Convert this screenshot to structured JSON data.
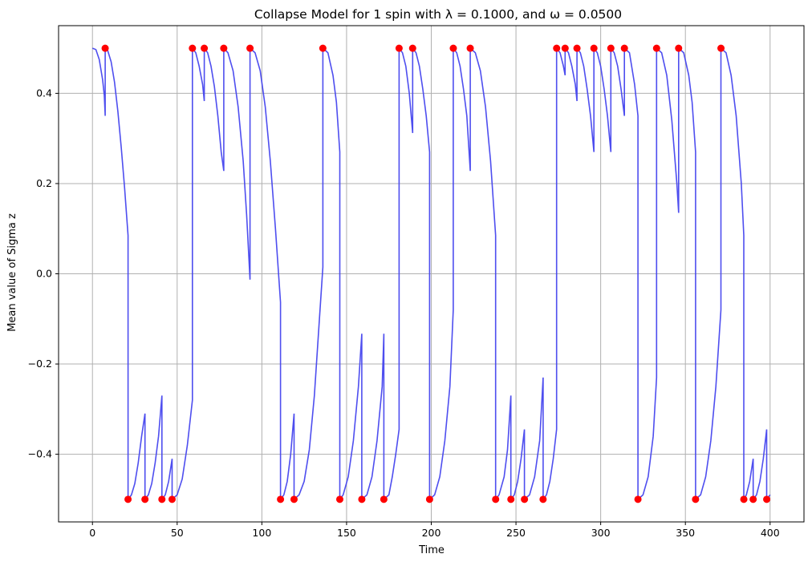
{
  "chart_data": {
    "type": "line",
    "title": "Collapse Model for 1 spin with λ = 0.1000, and ω = 0.0500",
    "xlabel": "Time",
    "ylabel": "Mean value of Sigma z",
    "xlim": [
      -20,
      420
    ],
    "ylim": [
      -0.55,
      0.55
    ],
    "x_ticks": [
      0,
      50,
      100,
      150,
      200,
      250,
      300,
      350,
      400
    ],
    "x_tick_labels": [
      "0",
      "50",
      "100",
      "150",
      "200",
      "250",
      "300",
      "350",
      "400"
    ],
    "y_ticks": [
      -0.4,
      -0.2,
      0.0,
      0.2,
      0.4
    ],
    "y_tick_labels": [
      "−0.4",
      "−0.2",
      "0.0",
      "0.2",
      "0.4"
    ],
    "grid": true,
    "line_color": "#4444ee",
    "marker_color": "#ff0000",
    "series": [
      {
        "values_description": "expectation",
        "points": [
          [
            0,
            0.5
          ],
          [
            2,
            0.497
          ],
          [
            4,
            0.475
          ],
          [
            6,
            0.43
          ],
          [
            7,
            0.395
          ],
          [
            7.5,
            0.35
          ],
          [
            7.5,
            0.5
          ],
          [
            9,
            0.495
          ],
          [
            11,
            0.47
          ],
          [
            13,
            0.425
          ],
          [
            15,
            0.36
          ],
          [
            17,
            0.28
          ],
          [
            19,
            0.19
          ],
          [
            21,
            0.085
          ],
          [
            21,
            -0.5
          ],
          [
            23,
            -0.49
          ],
          [
            25,
            -0.465
          ],
          [
            27,
            -0.42
          ],
          [
            29,
            -0.36
          ],
          [
            31,
            -0.31
          ],
          [
            31,
            -0.5
          ],
          [
            33,
            -0.49
          ],
          [
            35,
            -0.465
          ],
          [
            37,
            -0.42
          ],
          [
            39,
            -0.36
          ],
          [
            41,
            -0.27
          ],
          [
            41,
            -0.5
          ],
          [
            43,
            -0.49
          ],
          [
            45,
            -0.46
          ],
          [
            47,
            -0.41
          ],
          [
            47,
            -0.5
          ],
          [
            50,
            -0.49
          ],
          [
            53,
            -0.455
          ],
          [
            56,
            -0.38
          ],
          [
            59,
            -0.28
          ],
          [
            59,
            -0.18
          ],
          [
            59,
            0.5
          ],
          [
            61,
            0.49
          ],
          [
            63,
            0.46
          ],
          [
            65,
            0.42
          ],
          [
            66,
            0.383
          ],
          [
            66,
            0.5
          ],
          [
            68,
            0.49
          ],
          [
            70,
            0.46
          ],
          [
            72,
            0.415
          ],
          [
            74,
            0.35
          ],
          [
            76,
            0.27
          ],
          [
            77.5,
            0.228
          ],
          [
            77.5,
            0.5
          ],
          [
            80,
            0.49
          ],
          [
            83,
            0.45
          ],
          [
            86,
            0.37
          ],
          [
            89,
            0.25
          ],
          [
            91,
            0.13
          ],
          [
            93,
            -0.013
          ],
          [
            93,
            0.5
          ],
          [
            96,
            0.49
          ],
          [
            99,
            0.45
          ],
          [
            102,
            0.37
          ],
          [
            105,
            0.25
          ],
          [
            108,
            0.1
          ],
          [
            111,
            -0.063
          ],
          [
            111,
            -0.5
          ],
          [
            113,
            -0.49
          ],
          [
            115,
            -0.46
          ],
          [
            117,
            -0.4
          ],
          [
            119,
            -0.31
          ],
          [
            119,
            -0.5
          ],
          [
            122,
            -0.49
          ],
          [
            125,
            -0.46
          ],
          [
            128,
            -0.39
          ],
          [
            131,
            -0.27
          ],
          [
            134,
            -0.1
          ],
          [
            136,
            0.015
          ],
          [
            136,
            0.5
          ],
          [
            139,
            0.49
          ],
          [
            142,
            0.44
          ],
          [
            144,
            0.38
          ],
          [
            146,
            0.27
          ],
          [
            146,
            -0.5
          ],
          [
            148,
            -0.49
          ],
          [
            151,
            -0.45
          ],
          [
            154,
            -0.37
          ],
          [
            157,
            -0.25
          ],
          [
            159,
            -0.133
          ],
          [
            159,
            -0.5
          ],
          [
            162,
            -0.49
          ],
          [
            165,
            -0.45
          ],
          [
            168,
            -0.37
          ],
          [
            171,
            -0.25
          ],
          [
            172,
            -0.133
          ],
          [
            172,
            -0.5
          ],
          [
            175,
            -0.49
          ],
          [
            177,
            -0.45
          ],
          [
            179,
            -0.4
          ],
          [
            181,
            -0.345
          ],
          [
            181,
            0.5
          ],
          [
            183,
            0.49
          ],
          [
            185,
            0.46
          ],
          [
            187,
            0.4
          ],
          [
            189,
            0.312
          ],
          [
            189,
            0.5
          ],
          [
            191,
            0.49
          ],
          [
            193,
            0.46
          ],
          [
            195,
            0.41
          ],
          [
            197,
            0.35
          ],
          [
            199,
            0.27
          ],
          [
            199,
            -0.5
          ],
          [
            202,
            -0.49
          ],
          [
            205,
            -0.45
          ],
          [
            208,
            -0.37
          ],
          [
            211,
            -0.25
          ],
          [
            213,
            -0.08
          ],
          [
            213,
            0.5
          ],
          [
            215,
            0.49
          ],
          [
            217,
            0.46
          ],
          [
            219,
            0.41
          ],
          [
            221,
            0.35
          ],
          [
            223,
            0.228
          ],
          [
            223,
            0.5
          ],
          [
            226,
            0.49
          ],
          [
            229,
            0.45
          ],
          [
            232,
            0.37
          ],
          [
            235,
            0.25
          ],
          [
            238,
            0.085
          ],
          [
            238,
            -0.5
          ],
          [
            240,
            -0.49
          ],
          [
            243,
            -0.45
          ],
          [
            245,
            -0.39
          ],
          [
            247,
            -0.27
          ],
          [
            247,
            -0.5
          ],
          [
            249,
            -0.49
          ],
          [
            251,
            -0.46
          ],
          [
            253,
            -0.41
          ],
          [
            255,
            -0.345
          ],
          [
            255,
            -0.5
          ],
          [
            258,
            -0.49
          ],
          [
            261,
            -0.45
          ],
          [
            264,
            -0.37
          ],
          [
            266,
            -0.23
          ],
          [
            266,
            -0.5
          ],
          [
            268,
            -0.49
          ],
          [
            270,
            -0.46
          ],
          [
            272,
            -0.41
          ],
          [
            274,
            -0.345
          ],
          [
            274,
            0.5
          ],
          [
            276,
            0.49
          ],
          [
            278,
            0.46
          ],
          [
            279,
            0.44
          ],
          [
            279,
            0.5
          ],
          [
            281,
            0.49
          ],
          [
            283,
            0.46
          ],
          [
            285,
            0.42
          ],
          [
            286,
            0.383
          ],
          [
            286,
            0.5
          ],
          [
            288,
            0.49
          ],
          [
            290,
            0.46
          ],
          [
            292,
            0.41
          ],
          [
            294,
            0.35
          ],
          [
            296,
            0.27
          ],
          [
            296,
            0.5
          ],
          [
            298,
            0.49
          ],
          [
            300,
            0.46
          ],
          [
            302,
            0.41
          ],
          [
            304,
            0.35
          ],
          [
            306,
            0.27
          ],
          [
            306,
            0.5
          ],
          [
            308,
            0.49
          ],
          [
            310,
            0.46
          ],
          [
            312,
            0.41
          ],
          [
            314,
            0.35
          ],
          [
            314,
            0.5
          ],
          [
            317,
            0.49
          ],
          [
            320,
            0.42
          ],
          [
            322,
            0.35
          ],
          [
            322,
            -0.5
          ],
          [
            325,
            -0.49
          ],
          [
            328,
            -0.45
          ],
          [
            331,
            -0.36
          ],
          [
            333,
            -0.23
          ],
          [
            333,
            0.5
          ],
          [
            336,
            0.49
          ],
          [
            339,
            0.44
          ],
          [
            342,
            0.34
          ],
          [
            345,
            0.2
          ],
          [
            346,
            0.135
          ],
          [
            346,
            0.5
          ],
          [
            349,
            0.49
          ],
          [
            352,
            0.44
          ],
          [
            354,
            0.38
          ],
          [
            356,
            0.27
          ],
          [
            356,
            -0.5
          ],
          [
            359,
            -0.49
          ],
          [
            362,
            -0.45
          ],
          [
            365,
            -0.37
          ],
          [
            368,
            -0.25
          ],
          [
            371,
            -0.08
          ],
          [
            371,
            0.5
          ],
          [
            374,
            0.49
          ],
          [
            377,
            0.44
          ],
          [
            380,
            0.35
          ],
          [
            383,
            0.2
          ],
          [
            384.5,
            0.085
          ],
          [
            384.5,
            -0.5
          ],
          [
            386,
            -0.49
          ],
          [
            388,
            -0.46
          ],
          [
            390,
            -0.41
          ],
          [
            390,
            -0.5
          ],
          [
            392,
            -0.49
          ],
          [
            394,
            -0.46
          ],
          [
            396,
            -0.41
          ],
          [
            398,
            -0.345
          ],
          [
            398,
            -0.5
          ],
          [
            400,
            -0.49
          ]
        ]
      }
    ],
    "markers": [
      [
        7.5,
        0.5
      ],
      [
        21,
        -0.5
      ],
      [
        31,
        -0.5
      ],
      [
        41,
        -0.5
      ],
      [
        47,
        -0.5
      ],
      [
        59,
        0.5
      ],
      [
        66,
        0.5
      ],
      [
        77.5,
        0.5
      ],
      [
        93,
        0.5
      ],
      [
        111,
        -0.5
      ],
      [
        119,
        -0.5
      ],
      [
        136,
        0.5
      ],
      [
        146,
        -0.5
      ],
      [
        159,
        -0.5
      ],
      [
        172,
        -0.5
      ],
      [
        181,
        0.5
      ],
      [
        189,
        0.5
      ],
      [
        199,
        -0.5
      ],
      [
        213,
        0.5
      ],
      [
        223,
        0.5
      ],
      [
        238,
        -0.5
      ],
      [
        247,
        -0.5
      ],
      [
        255,
        -0.5
      ],
      [
        266,
        -0.5
      ],
      [
        274,
        0.5
      ],
      [
        279,
        0.5
      ],
      [
        286,
        0.5
      ],
      [
        296,
        0.5
      ],
      [
        306,
        0.5
      ],
      [
        314,
        0.5
      ],
      [
        322,
        -0.5
      ],
      [
        333,
        0.5
      ],
      [
        346,
        0.5
      ],
      [
        356,
        -0.5
      ],
      [
        371,
        0.5
      ],
      [
        384.5,
        -0.5
      ],
      [
        390,
        -0.5
      ],
      [
        398,
        -0.5
      ]
    ]
  }
}
